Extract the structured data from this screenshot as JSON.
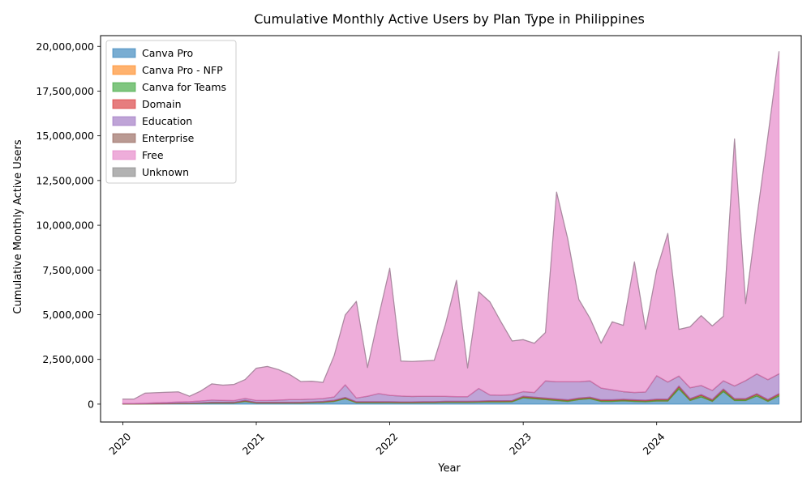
{
  "chart_data": {
    "type": "area",
    "stacked": true,
    "title": "Cumulative Monthly Active Users by Plan Type in Philippines",
    "xlabel": "Year",
    "ylabel": "Cumulative Monthly Active Users",
    "x_start": "2020-01",
    "x_end": "2024-12",
    "xlim": [
      "2019-11",
      "2025-02"
    ],
    "ylim": [
      -1000000,
      20600000
    ],
    "yticks": [
      0,
      2500000,
      5000000,
      7500000,
      10000000,
      12500000,
      15000000,
      17500000,
      20000000
    ],
    "ytick_labels": [
      "0",
      "2,500,000",
      "5,000,000",
      "7,500,000",
      "10,000,000",
      "12,500,000",
      "15,000,000",
      "17,500,000",
      "20,000,000"
    ],
    "xticks": [
      "2020-01",
      "2021-01",
      "2022-01",
      "2023-01",
      "2024-01"
    ],
    "xtick_labels": [
      "2020",
      "2021",
      "2022",
      "2023",
      "2024"
    ],
    "grid": false,
    "legend_position": "top-left",
    "x": [
      "2020-01",
      "2020-02",
      "2020-03",
      "2020-04",
      "2020-05",
      "2020-06",
      "2020-07",
      "2020-08",
      "2020-09",
      "2020-10",
      "2020-11",
      "2020-12",
      "2021-01",
      "2021-02",
      "2021-03",
      "2021-04",
      "2021-05",
      "2021-06",
      "2021-07",
      "2021-08",
      "2021-09",
      "2021-10",
      "2021-11",
      "2021-12",
      "2022-01",
      "2022-02",
      "2022-03",
      "2022-04",
      "2022-05",
      "2022-06",
      "2022-07",
      "2022-08",
      "2022-09",
      "2022-10",
      "2022-11",
      "2022-12",
      "2023-01",
      "2023-02",
      "2023-03",
      "2023-04",
      "2023-05",
      "2023-06",
      "2023-07",
      "2023-08",
      "2023-09",
      "2023-10",
      "2023-11",
      "2023-12",
      "2024-01",
      "2024-02",
      "2024-03",
      "2024-04",
      "2024-05",
      "2024-06",
      "2024-07",
      "2024-08",
      "2024-09",
      "2024-10",
      "2024-11",
      "2024-12"
    ],
    "series": [
      {
        "name": "Canva Pro",
        "color": "#1f77b4",
        "values": [
          5000,
          5000,
          10000,
          15000,
          20000,
          25000,
          30000,
          40000,
          60000,
          60000,
          60000,
          150000,
          60000,
          60000,
          60000,
          60000,
          60000,
          80000,
          100000,
          150000,
          300000,
          80000,
          80000,
          80000,
          80000,
          70000,
          70000,
          80000,
          80000,
          100000,
          100000,
          100000,
          110000,
          120000,
          120000,
          130000,
          350000,
          300000,
          250000,
          200000,
          150000,
          250000,
          300000,
          150000,
          150000,
          180000,
          150000,
          130000,
          170000,
          170000,
          850000,
          200000,
          400000,
          150000,
          700000,
          200000,
          200000,
          450000,
          150000,
          450000
        ]
      },
      {
        "name": "Canva Pro - NFP",
        "color": "#ff7f0e",
        "values": [
          1000,
          1000,
          1000,
          1000,
          1000,
          1000,
          1000,
          1000,
          1000,
          1000,
          1000,
          1000,
          2000,
          2000,
          2000,
          2000,
          2000,
          2000,
          2000,
          2000,
          2000,
          2000,
          2000,
          2000,
          3000,
          3000,
          3000,
          3000,
          3000,
          3000,
          3000,
          3000,
          3000,
          3000,
          3000,
          3000,
          4000,
          4000,
          4000,
          4000,
          4000,
          4000,
          4000,
          4000,
          4000,
          4000,
          4000,
          4000,
          5000,
          5000,
          5000,
          5000,
          5000,
          5000,
          5000,
          5000,
          5000,
          5000,
          5000,
          5000
        ]
      },
      {
        "name": "Canva for Teams",
        "color": "#2ca02c",
        "values": [
          5000,
          5000,
          5000,
          10000,
          10000,
          15000,
          15000,
          20000,
          25000,
          25000,
          25000,
          35000,
          20000,
          20000,
          20000,
          20000,
          25000,
          25000,
          30000,
          35000,
          40000,
          30000,
          30000,
          30000,
          30000,
          30000,
          30000,
          30000,
          30000,
          35000,
          35000,
          35000,
          35000,
          40000,
          40000,
          40000,
          50000,
          50000,
          50000,
          50000,
          50000,
          50000,
          50000,
          50000,
          50000,
          50000,
          50000,
          50000,
          60000,
          60000,
          100000,
          60000,
          80000,
          60000,
          90000,
          60000,
          60000,
          80000,
          60000,
          80000
        ]
      },
      {
        "name": "Domain",
        "color": "#d62728",
        "values": [
          5000,
          5000,
          5000,
          10000,
          10000,
          10000,
          10000,
          15000,
          20000,
          20000,
          20000,
          30000,
          20000,
          20000,
          20000,
          20000,
          20000,
          20000,
          25000,
          30000,
          35000,
          25000,
          25000,
          25000,
          25000,
          25000,
          25000,
          25000,
          25000,
          25000,
          25000,
          25000,
          25000,
          30000,
          30000,
          30000,
          40000,
          40000,
          40000,
          40000,
          40000,
          40000,
          40000,
          40000,
          40000,
          40000,
          40000,
          40000,
          45000,
          45000,
          60000,
          45000,
          50000,
          45000,
          55000,
          45000,
          45000,
          50000,
          45000,
          55000
        ]
      },
      {
        "name": "Education",
        "color": "#9467bd",
        "values": [
          20000,
          20000,
          30000,
          40000,
          50000,
          70000,
          80000,
          100000,
          120000,
          100000,
          90000,
          100000,
          100000,
          100000,
          120000,
          150000,
          150000,
          150000,
          150000,
          180000,
          700000,
          200000,
          300000,
          450000,
          350000,
          320000,
          300000,
          300000,
          300000,
          270000,
          250000,
          250000,
          700000,
          320000,
          300000,
          320000,
          250000,
          250000,
          950000,
          950000,
          1000000,
          900000,
          900000,
          650000,
          550000,
          420000,
          400000,
          450000,
          1300000,
          950000,
          550000,
          600000,
          500000,
          500000,
          450000,
          700000,
          1000000,
          1100000,
          1100000,
          1100000
        ]
      },
      {
        "name": "Enterprise",
        "color": "#8c564b",
        "values": [
          2000,
          2000,
          2000,
          3000,
          3000,
          3000,
          3000,
          4000,
          5000,
          5000,
          5000,
          6000,
          5000,
          5000,
          5000,
          5000,
          5000,
          5000,
          6000,
          7000,
          8000,
          6000,
          6000,
          6000,
          6000,
          6000,
          6000,
          6000,
          6000,
          6000,
          6000,
          6000,
          6000,
          6000,
          6000,
          6000,
          8000,
          8000,
          8000,
          8000,
          8000,
          8000,
          8000,
          8000,
          8000,
          8000,
          8000,
          8000,
          10000,
          10000,
          10000,
          10000,
          10000,
          10000,
          10000,
          10000,
          10000,
          10000,
          10000,
          10000
        ]
      },
      {
        "name": "Free",
        "color": "#e377c2",
        "values": [
          240000,
          240000,
          560000,
          560000,
          570000,
          560000,
          300000,
          550000,
          900000,
          850000,
          900000,
          1050000,
          1800000,
          1900000,
          1700000,
          1400000,
          1000000,
          1000000,
          900000,
          2300000,
          3900000,
          5400000,
          1600000,
          4300000,
          7100000,
          1950000,
          1950000,
          1970000,
          2000000,
          4000000,
          6500000,
          1600000,
          5400000,
          5200000,
          4100000,
          3000000,
          2900000,
          2750000,
          2700000,
          10600000,
          8000000,
          4600000,
          3500000,
          2500000,
          3800000,
          3700000,
          7300000,
          3500000,
          5900000,
          8300000,
          2600000,
          3400000,
          3900000,
          3600000,
          3600000,
          13800000,
          4300000,
          8700000,
          13600000,
          18000000
        ]
      },
      {
        "name": "Unknown",
        "color": "#7f7f7f",
        "values": [
          2000,
          2000,
          2000,
          2000,
          2000,
          2000,
          2000,
          2000,
          2000,
          2000,
          2000,
          2000,
          3000,
          3000,
          3000,
          3000,
          3000,
          3000,
          3000,
          3000,
          3000,
          3000,
          3000,
          3000,
          3000,
          3000,
          3000,
          3000,
          3000,
          3000,
          3000,
          3000,
          3000,
          3000,
          3000,
          3000,
          4000,
          4000,
          4000,
          4000,
          4000,
          4000,
          4000,
          4000,
          4000,
          4000,
          4000,
          4000,
          5000,
          5000,
          5000,
          5000,
          5000,
          5000,
          5000,
          5000,
          5000,
          5000,
          5000,
          5000
        ]
      }
    ]
  }
}
